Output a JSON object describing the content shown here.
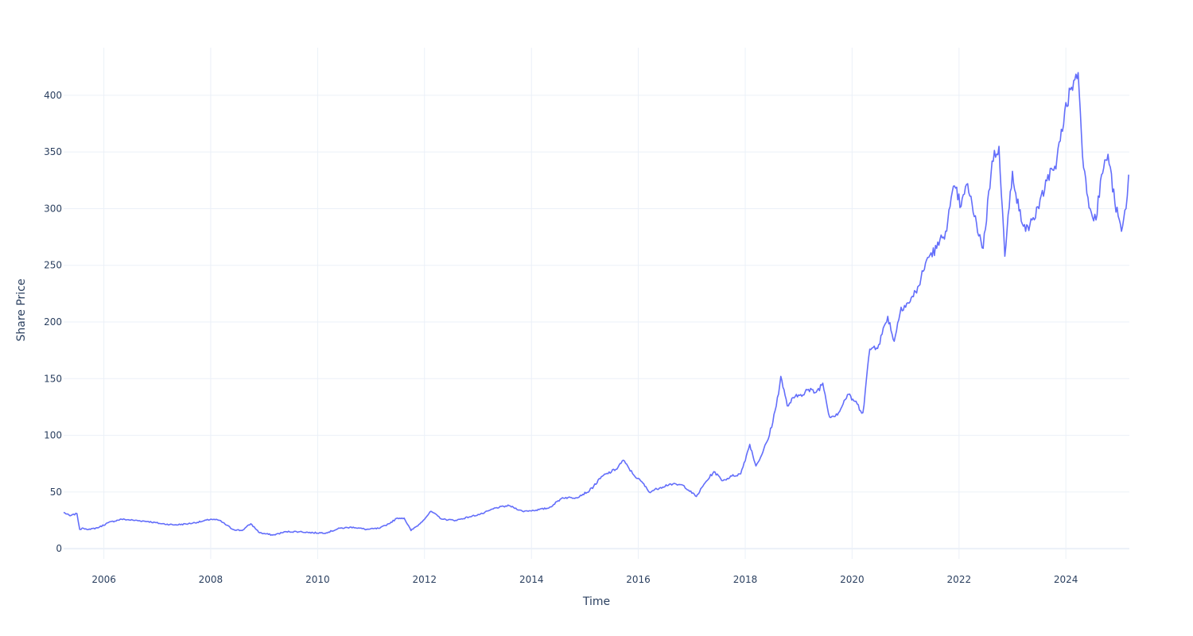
{
  "chart_data": {
    "type": "line",
    "title": "",
    "xlabel": "Time",
    "ylabel": "Share Price",
    "x_range": [
      "2005-04-01",
      "2025-03-10"
    ],
    "ylim": [
      -9,
      442
    ],
    "x_ticks": [
      "2006",
      "2008",
      "2010",
      "2012",
      "2014",
      "2016",
      "2018",
      "2020",
      "2022",
      "2024"
    ],
    "y_ticks": [
      0,
      50,
      100,
      150,
      200,
      250,
      300,
      350,
      400
    ],
    "grid": true,
    "legend": "none",
    "line_color": "#636efa",
    "series": [
      {
        "x": [
          "2005-04-01",
          "2005-05-15",
          "2005-07-01",
          "2005-07-20",
          "2005-08-15",
          "2005-10-01",
          "2005-12-01",
          "2006-02-01",
          "2006-05-01",
          "2006-08-01",
          "2006-11-01",
          "2007-02-01",
          "2007-05-01",
          "2007-08-01",
          "2007-11-01",
          "2008-01-01",
          "2008-03-01",
          "2008-06-01",
          "2008-08-01",
          "2008-10-01",
          "2008-12-01",
          "2009-03-01",
          "2009-06-01",
          "2009-09-01",
          "2009-12-01",
          "2010-03-01",
          "2010-06-01",
          "2010-09-01",
          "2010-12-01",
          "2011-03-01",
          "2011-05-01",
          "2011-07-01",
          "2011-08-15",
          "2011-10-01",
          "2011-12-01",
          "2012-02-15",
          "2012-05-01",
          "2012-08-01",
          "2012-11-01",
          "2013-02-01",
          "2013-05-01",
          "2013-08-01",
          "2013-11-01",
          "2014-02-01",
          "2014-05-01",
          "2014-08-01",
          "2014-11-01",
          "2015-02-01",
          "2015-05-01",
          "2015-08-01",
          "2015-09-20",
          "2015-12-01",
          "2016-02-01",
          "2016-03-15",
          "2016-06-01",
          "2016-08-01",
          "2016-11-01",
          "2017-02-01",
          "2017-04-01",
          "2017-06-01",
          "2017-08-01",
          "2017-10-01",
          "2017-12-01",
          "2018-02-01",
          "2018-03-15",
          "2018-05-01",
          "2018-06-15",
          "2018-08-01",
          "2018-09-01",
          "2018-10-15",
          "2018-12-01",
          "2019-01-15",
          "2019-03-01",
          "2019-05-01",
          "2019-06-15",
          "2019-08-01",
          "2019-10-01",
          "2019-12-01",
          "2020-01-20",
          "2020-03-15",
          "2020-05-01",
          "2020-07-01",
          "2020-09-01",
          "2020-10-15",
          "2020-12-01",
          "2021-02-01",
          "2021-04-01",
          "2021-06-01",
          "2021-08-01",
          "2021-10-01",
          "2021-12-01",
          "2022-01-15",
          "2022-03-01",
          "2022-04-15",
          "2022-06-15",
          "2022-08-15",
          "2022-10-01",
          "2022-11-10",
          "2023-01-01",
          "2023-02-15",
          "2023-04-01",
          "2023-05-15",
          "2023-07-01",
          "2023-09-01",
          "2023-10-25",
          "2023-12-01",
          "2024-02-01",
          "2024-03-25",
          "2024-05-01",
          "2024-06-15",
          "2024-07-25",
          "2024-09-01",
          "2024-10-15",
          "2024-12-01",
          "2025-01-15",
          "2025-02-15",
          "2025-03-05"
        ],
        "y": [
          32,
          29,
          31,
          17,
          18,
          17,
          19,
          23,
          26,
          25,
          24,
          22,
          21,
          22,
          24,
          26,
          25,
          17,
          16,
          22,
          14,
          12,
          15,
          15,
          14,
          14,
          18,
          19,
          17,
          18,
          22,
          27,
          27,
          16,
          22,
          33,
          26,
          25,
          28,
          31,
          36,
          38,
          33,
          34,
          36,
          45,
          45,
          51,
          64,
          70,
          78,
          65,
          58,
          50,
          54,
          57,
          56,
          46,
          58,
          68,
          60,
          64,
          66,
          92,
          73,
          85,
          100,
          126,
          152,
          126,
          133,
          136,
          140,
          138,
          146,
          116,
          120,
          136,
          130,
          120,
          176,
          180,
          205,
          183,
          213,
          218,
          232,
          257,
          265,
          280,
          320,
          302,
          322,
          293,
          265,
          342,
          355,
          258,
          333,
          298,
          280,
          290,
          300,
          330,
          335,
          370,
          405,
          420,
          336,
          300,
          290,
          330,
          348,
          305,
          280,
          300,
          330
        ]
      }
    ]
  }
}
